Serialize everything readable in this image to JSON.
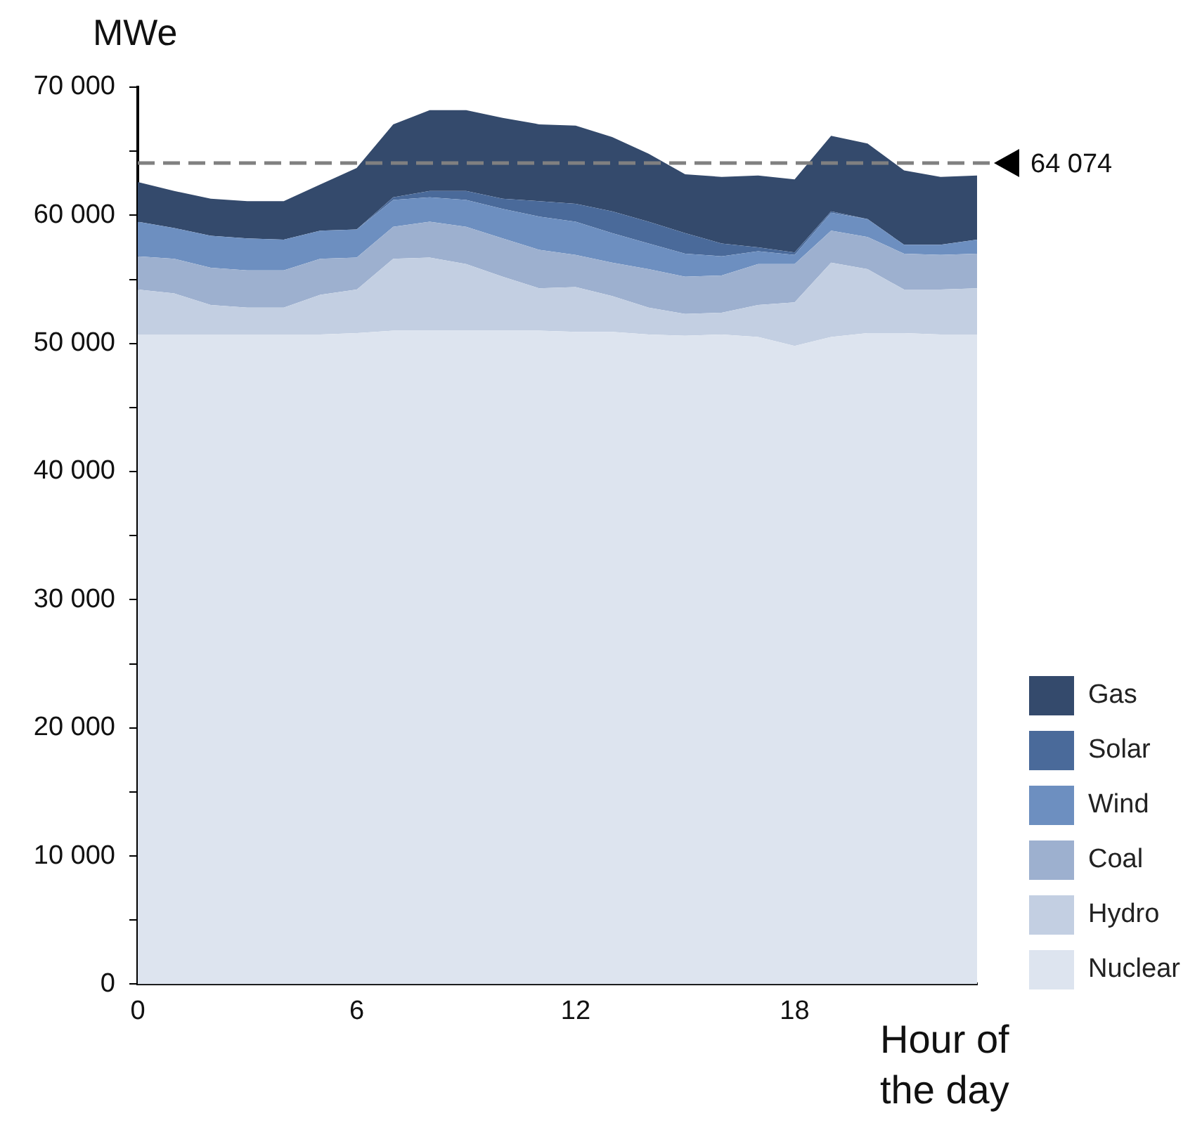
{
  "chart_data": {
    "type": "area",
    "stacked": true,
    "ylabel": "MWe",
    "xlabel": "Hour of the day",
    "x": [
      0,
      1,
      2,
      3,
      4,
      5,
      6,
      7,
      8,
      9,
      10,
      11,
      12,
      13,
      14,
      15,
      16,
      17,
      18,
      19,
      20,
      21,
      22,
      23
    ],
    "series": [
      {
        "name": "Nuclear",
        "color": "#dde4ef",
        "values": [
          50700,
          50700,
          50700,
          50700,
          50700,
          50700,
          50800,
          51000,
          51000,
          51000,
          51000,
          51000,
          50900,
          50900,
          50700,
          50600,
          50700,
          50500,
          49800,
          50500,
          50800,
          50800,
          50700,
          50700
        ]
      },
      {
        "name": "Hydro",
        "color": "#c3cfe2",
        "values": [
          3500,
          3200,
          2300,
          2100,
          2100,
          3100,
          3400,
          5600,
          5700,
          5200,
          4200,
          3300,
          3500,
          2800,
          2100,
          1700,
          1700,
          2500,
          3400,
          5800,
          5000,
          3400,
          3500,
          3600
        ]
      },
      {
        "name": "Coal",
        "color": "#9db0cf",
        "values": [
          2600,
          2700,
          2900,
          2900,
          2900,
          2800,
          2500,
          2500,
          2800,
          2900,
          3000,
          3000,
          2500,
          2600,
          3000,
          2900,
          2900,
          3200,
          3000,
          2500,
          2500,
          2800,
          2700,
          2700
        ]
      },
      {
        "name": "Wind",
        "color": "#6d8fc0",
        "values": [
          2700,
          2400,
          2500,
          2500,
          2400,
          2200,
          2200,
          2100,
          1900,
          2100,
          2300,
          2600,
          2600,
          2300,
          2000,
          1800,
          1500,
          1000,
          700,
          1400,
          1400,
          700,
          800,
          1100
        ]
      },
      {
        "name": "Solar",
        "color": "#4a6a9a",
        "values": [
          0,
          0,
          0,
          0,
          0,
          0,
          0,
          200,
          500,
          700,
          800,
          1200,
          1400,
          1700,
          1700,
          1600,
          1000,
          300,
          200,
          100,
          0,
          0,
          0,
          0
        ]
      },
      {
        "name": "Gas",
        "color": "#344a6c",
        "values": [
          3100,
          2900,
          2900,
          2900,
          3000,
          3600,
          4800,
          5700,
          6300,
          6300,
          6300,
          6000,
          6100,
          5800,
          5300,
          4600,
          5200,
          5600,
          5700,
          5900,
          5900,
          5800,
          5300,
          5000
        ]
      }
    ],
    "xlim": [
      0,
      23
    ],
    "xticks": [
      0,
      6,
      12,
      18
    ],
    "ylim": [
      0,
      70000
    ],
    "yticks": [
      {
        "value": 0,
        "label": "0"
      },
      {
        "value": 5000,
        "label": null
      },
      {
        "value": 10000,
        "label": "10 000"
      },
      {
        "value": 15000,
        "label": null
      },
      {
        "value": 20000,
        "label": "20 000"
      },
      {
        "value": 25000,
        "label": null
      },
      {
        "value": 30000,
        "label": "30 000"
      },
      {
        "value": 35000,
        "label": null
      },
      {
        "value": 40000,
        "label": "40 000"
      },
      {
        "value": 45000,
        "label": null
      },
      {
        "value": 50000,
        "label": "50 000"
      },
      {
        "value": 55000,
        "label": null
      },
      {
        "value": 60000,
        "label": "60 000"
      },
      {
        "value": 65000,
        "label": null
      },
      {
        "value": 70000,
        "label": "70 000"
      }
    ],
    "ref_lines": [
      {
        "axis": "y",
        "value": 64074,
        "label": "64 074",
        "color": "#808080",
        "line_style": "dashed"
      }
    ],
    "grid": false,
    "legend": "bottom right"
  }
}
